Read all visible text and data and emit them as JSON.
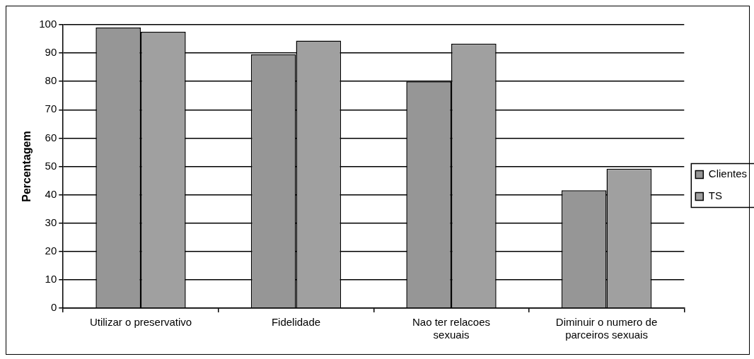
{
  "chart_data": {
    "type": "bar",
    "ylabel": "Percentagem",
    "categories": [
      "Utilizar o preservativo",
      "Fidelidade",
      "Nao ter relacoes sexuais",
      "Diminuir o numero de parceiros sexuais"
    ],
    "series": [
      {
        "name": "Clientes",
        "color": "#969696",
        "values": [
          99,
          89.5,
          80,
          41.6
        ]
      },
      {
        "name": "TS",
        "color": "#a0a0a0",
        "values": [
          97.5,
          94.4,
          93.3,
          49.2
        ]
      }
    ],
    "ylim": [
      0,
      100
    ],
    "yticks": [
      0,
      10,
      20,
      30,
      40,
      50,
      60,
      70,
      80,
      90,
      100
    ],
    "grid": "y",
    "legend": "right"
  }
}
